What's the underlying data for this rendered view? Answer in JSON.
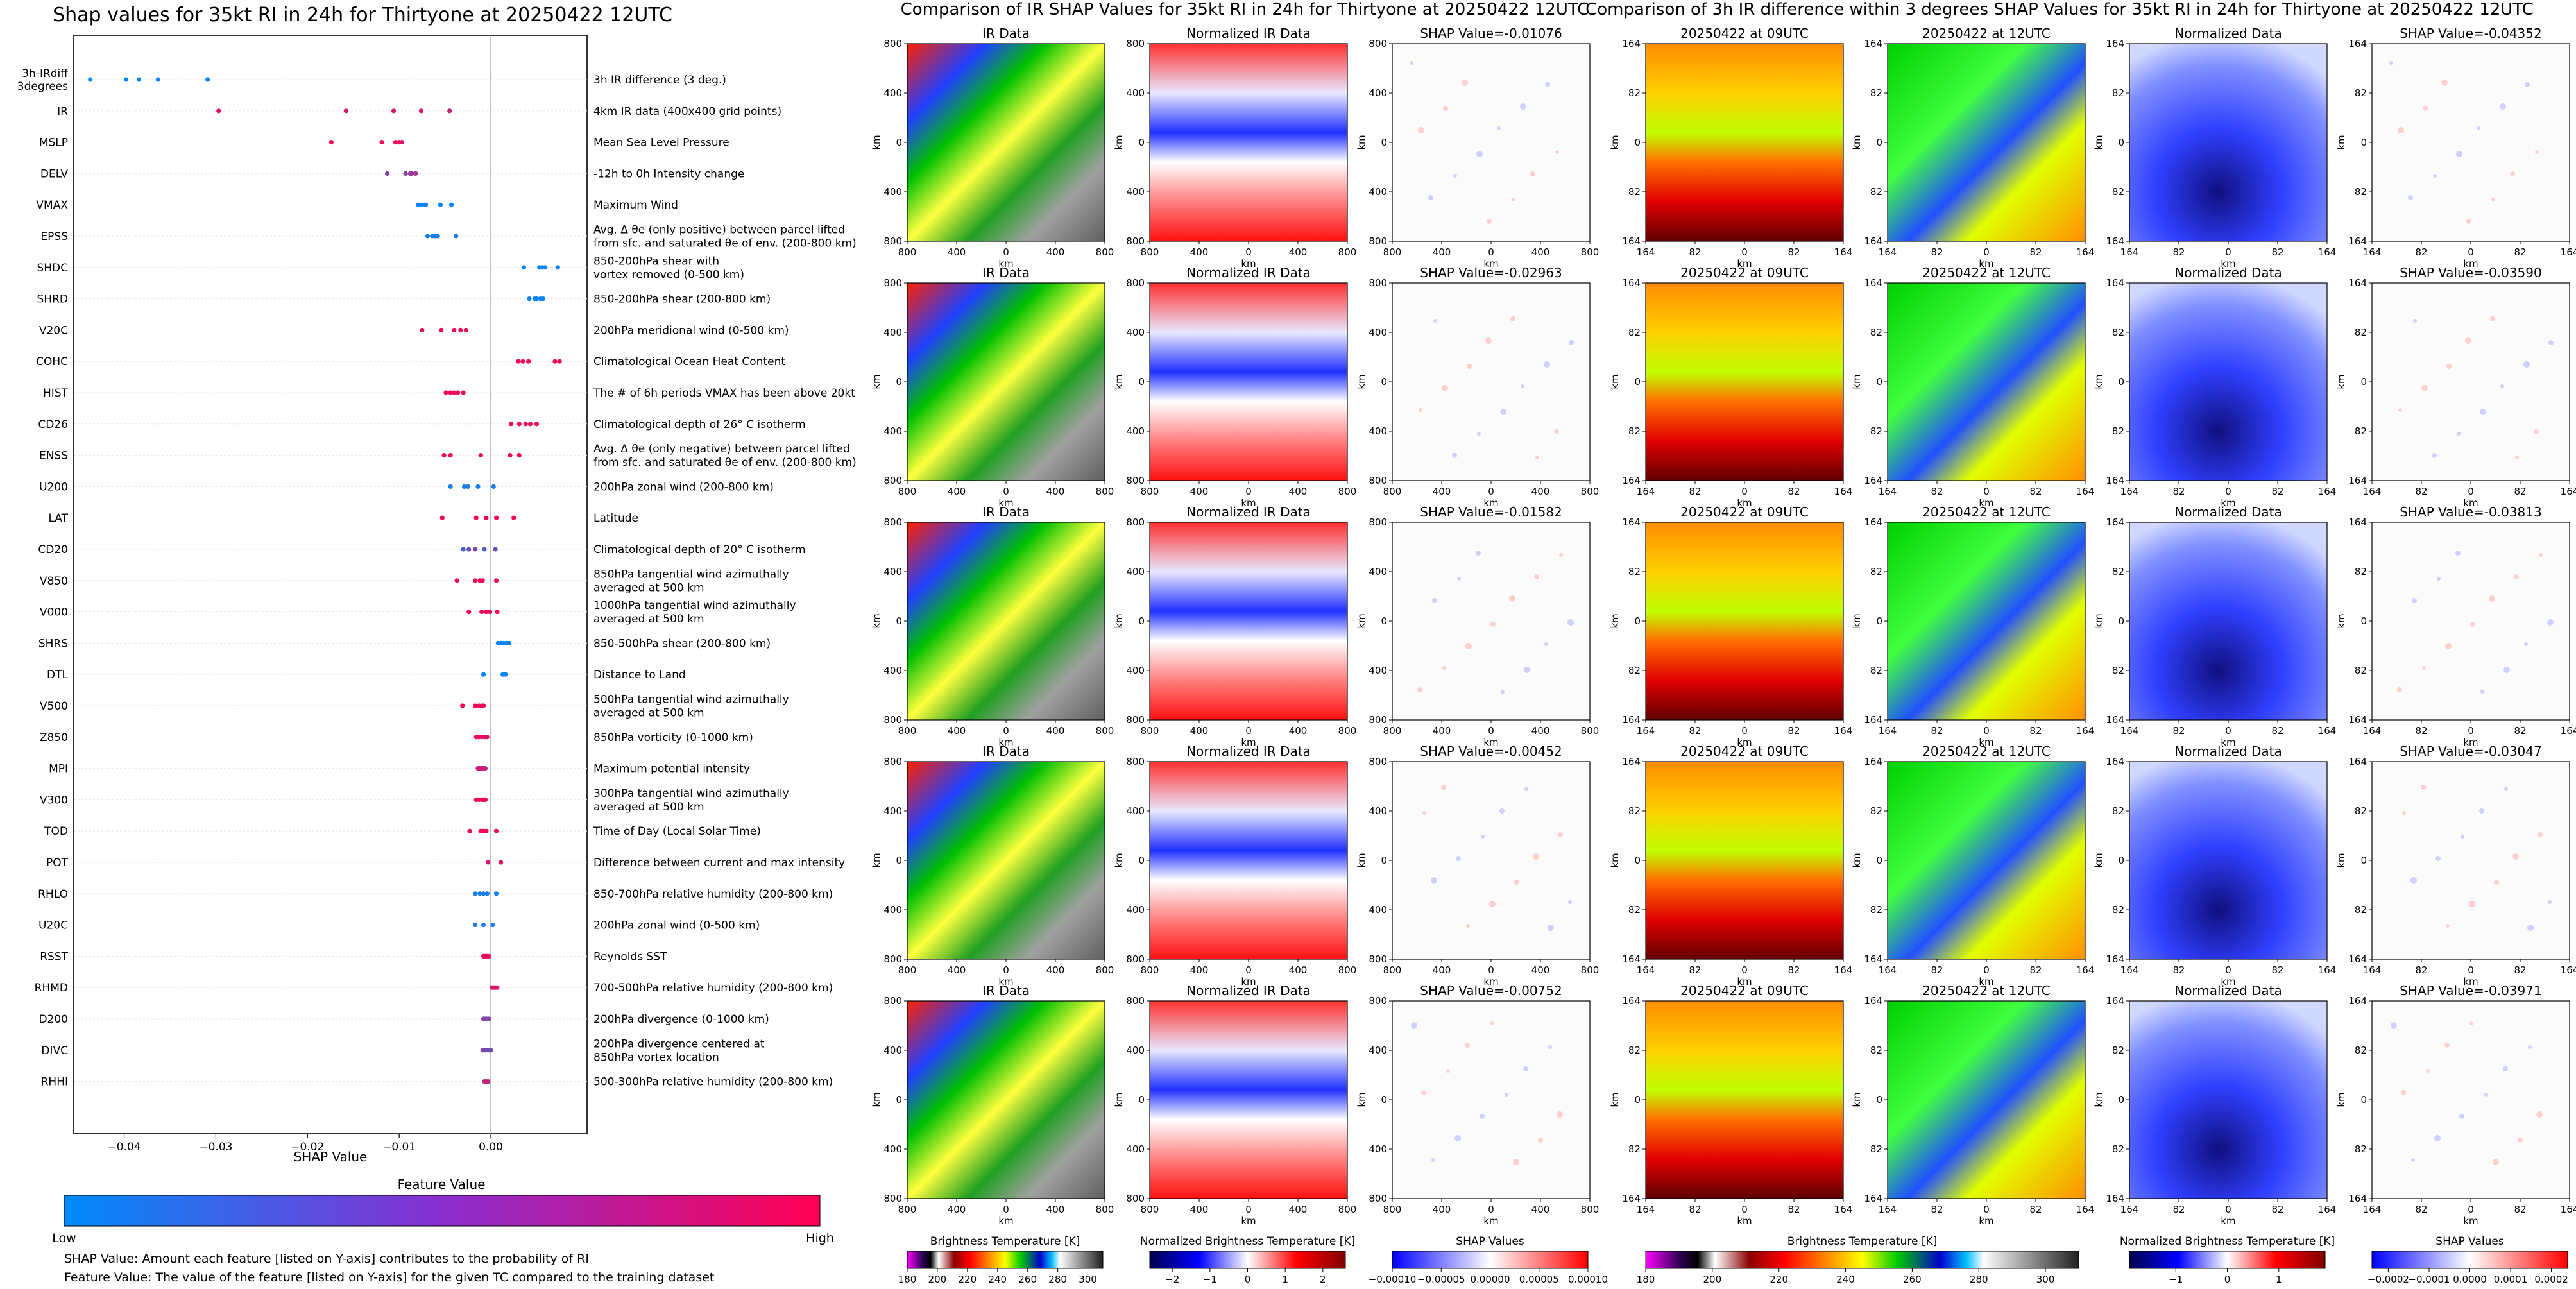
{
  "colors": {
    "low": "#008bfb",
    "high": "#ff0052",
    "panel_border": "#000000",
    "tick_line": "#e6e6e6"
  },
  "chart_data": [
    {
      "type": "scatter",
      "title": "Shap values for 35kt RI in 24h for Thirtyone at 20250422 12UTC",
      "xlabel": "SHAP Value",
      "xlim": [
        -0.0455,
        0.0105
      ],
      "xticks": [
        -0.04,
        -0.03,
        -0.02,
        -0.01,
        0.0
      ],
      "xtick_labels": [
        "−0.04",
        "−0.03",
        "−0.02",
        "−0.01",
        "0.00"
      ],
      "colorbar_title": "Feature Value",
      "colorbar_low": "Low",
      "colorbar_high": "High",
      "footnote_1": "SHAP Value: Amount each feature [listed on Y-axis] contributes to the probability of RI",
      "footnote_2": "Feature Value: The value of the feature [listed on Y-axis] for the given TC compared to the training dataset",
      "features": [
        {
          "code": [
            "3h-IRdiff",
            "3degrees"
          ],
          "desc": [
            "3h IR difference (3 deg.)"
          ],
          "shap": [
            -0.0437,
            -0.0398,
            -0.0384,
            -0.0363,
            -0.0309
          ],
          "val": [
            0.03,
            0.04,
            0.04,
            0.05,
            0.06
          ]
        },
        {
          "code": [
            "IR"
          ],
          "desc": [
            "4km IR data (400x400 grid points)"
          ],
          "shap": [
            -0.0297,
            -0.0158,
            -0.0106,
            -0.0076,
            -0.0045
          ],
          "val": [
            0.9,
            0.85,
            0.8,
            0.85,
            0.75
          ]
        },
        {
          "code": [
            "MSLP"
          ],
          "desc": [
            "Mean Sea Level Pressure"
          ],
          "shap": [
            -0.0174,
            -0.0119,
            -0.0104,
            -0.01,
            -0.0097
          ],
          "val": [
            0.95,
            0.95,
            0.95,
            0.95,
            0.9
          ]
        },
        {
          "code": [
            "DELV"
          ],
          "desc": [
            "-12h to 0h Intensity change"
          ],
          "shap": [
            -0.0113,
            -0.0093,
            -0.0088,
            -0.0086,
            -0.0082
          ],
          "val": [
            0.5,
            0.55,
            0.55,
            0.6,
            0.6
          ]
        },
        {
          "code": [
            "VMAX"
          ],
          "desc": [
            "Maximum Wind"
          ],
          "shap": [
            -0.0079,
            -0.0075,
            -0.0071,
            -0.0055,
            -0.0043
          ],
          "val": [
            0.05,
            0.05,
            0.05,
            0.05,
            0.05
          ]
        },
        {
          "code": [
            "EPSS"
          ],
          "desc": [
            "Avg. Δ θe (only positive) between parcel lifted",
            "from sfc. and saturated θe of env. (200-800 km)"
          ],
          "shap": [
            -0.0069,
            -0.0064,
            -0.0061,
            -0.0058,
            -0.0038
          ],
          "val": [
            0.1,
            0.1,
            0.1,
            0.1,
            0.1
          ]
        },
        {
          "code": [
            "SHDC"
          ],
          "desc": [
            "850-200hPa shear with",
            "vortex removed (0-500 km)"
          ],
          "shap": [
            0.0036,
            0.0053,
            0.0056,
            0.0059,
            0.0073
          ],
          "val": [
            0.05,
            0.05,
            0.05,
            0.05,
            0.05
          ]
        },
        {
          "code": [
            "SHRD"
          ],
          "desc": [
            "850-200hPa shear (200-800 km)"
          ],
          "shap": [
            0.0042,
            0.0048,
            0.005,
            0.0054,
            0.0057
          ],
          "val": [
            0.05,
            0.05,
            0.05,
            0.05,
            0.05
          ]
        },
        {
          "code": [
            "V20C"
          ],
          "desc": [
            "200hPa meridional wind (0-500 km)"
          ],
          "shap": [
            -0.0075,
            -0.0054,
            -0.004,
            -0.0033,
            -0.0027
          ],
          "val": [
            0.95,
            0.95,
            0.95,
            0.95,
            0.95
          ]
        },
        {
          "code": [
            "COHC"
          ],
          "desc": [
            "Climatological Ocean Heat Content"
          ],
          "shap": [
            0.003,
            0.0035,
            0.0041,
            0.007,
            0.0075
          ],
          "val": [
            0.95,
            0.95,
            0.95,
            0.95,
            0.95
          ]
        },
        {
          "code": [
            "HIST"
          ],
          "desc": [
            "The # of 6h periods VMAX has been above 20kt"
          ],
          "shap": [
            -0.0049,
            -0.0044,
            -0.004,
            -0.0036,
            -0.003
          ],
          "val": [
            0.95,
            0.95,
            0.95,
            0.95,
            0.95
          ]
        },
        {
          "code": [
            "CD26"
          ],
          "desc": [
            "Climatological depth of 26° C isotherm"
          ],
          "shap": [
            0.0022,
            0.0031,
            0.0038,
            0.0043,
            0.005
          ],
          "val": [
            0.95,
            0.95,
            0.95,
            0.95,
            0.95
          ]
        },
        {
          "code": [
            "ENSS"
          ],
          "desc": [
            "Avg. Δ θe (only negative) between parcel lifted",
            "from sfc. and saturated θe of env. (200-800 km)"
          ],
          "shap": [
            -0.0051,
            -0.0044,
            -0.0011,
            0.0021,
            0.0031
          ],
          "val": [
            0.95,
            0.95,
            0.95,
            0.95,
            0.95
          ]
        },
        {
          "code": [
            "U200"
          ],
          "desc": [
            "200hPa zonal wind (200-800 km)"
          ],
          "shap": [
            -0.0044,
            -0.0029,
            -0.0025,
            -0.0014,
            0.0003
          ],
          "val": [
            0.1,
            0.1,
            0.1,
            0.1,
            0.1
          ]
        },
        {
          "code": [
            "LAT"
          ],
          "desc": [
            "Latitude"
          ],
          "shap": [
            -0.0053,
            -0.0016,
            -0.0005,
            0.0006,
            0.0025
          ],
          "val": [
            0.95,
            0.95,
            0.95,
            0.95,
            0.95
          ]
        },
        {
          "code": [
            "CD20"
          ],
          "desc": [
            "Climatological depth of 20° C isotherm"
          ],
          "shap": [
            -0.003,
            -0.0024,
            -0.0017,
            -0.0007,
            0.0005
          ],
          "val": [
            0.3,
            0.4,
            0.5,
            0.3,
            0.4
          ]
        },
        {
          "code": [
            "V850"
          ],
          "desc": [
            "850hPa tangential wind azimuthally",
            "averaged at 500 km"
          ],
          "shap": [
            -0.0037,
            -0.0017,
            -0.0012,
            -0.0009,
            0.0006
          ],
          "val": [
            0.95,
            0.95,
            0.95,
            0.95,
            0.95
          ]
        },
        {
          "code": [
            "V000"
          ],
          "desc": [
            "1000hPa tangential wind azimuthally",
            "averaged at 500 km"
          ],
          "shap": [
            -0.0024,
            -0.001,
            -0.0005,
            -0.0001,
            0.0007
          ],
          "val": [
            0.95,
            0.95,
            0.95,
            0.95,
            0.95
          ]
        },
        {
          "code": [
            "SHRS"
          ],
          "desc": [
            "850-500hPa shear (200-800 km)"
          ],
          "shap": [
            0.0008,
            0.0011,
            0.0014,
            0.0017,
            0.002
          ],
          "val": [
            0.05,
            0.05,
            0.05,
            0.05,
            0.05
          ]
        },
        {
          "code": [
            "DTL"
          ],
          "desc": [
            "Distance to Land"
          ],
          "shap": [
            -0.0008,
            0.0013,
            0.0016
          ],
          "val": [
            0.05,
            0.05,
            0.05
          ]
        },
        {
          "code": [
            "V500"
          ],
          "desc": [
            "500hPa tangential wind azimuthally",
            "averaged at 500 km"
          ],
          "shap": [
            -0.0031,
            -0.0017,
            -0.0013,
            -0.001,
            -0.0008
          ],
          "val": [
            0.95,
            0.95,
            0.95,
            0.95,
            0.95
          ]
        },
        {
          "code": [
            "Z850"
          ],
          "desc": [
            "850hPa vorticity (0-1000 km)"
          ],
          "shap": [
            -0.0016,
            -0.0013,
            -0.001,
            -0.0007,
            -0.0004
          ],
          "val": [
            0.95,
            0.9,
            0.9,
            0.85,
            0.85
          ]
        },
        {
          "code": [
            "MPI"
          ],
          "desc": [
            "Maximum potential intensity"
          ],
          "shap": [
            -0.0014,
            -0.0012,
            -0.001,
            -0.0008,
            -0.0006
          ],
          "val": [
            0.8,
            0.75,
            0.75,
            0.8,
            0.75
          ]
        },
        {
          "code": [
            "V300"
          ],
          "desc": [
            "300hPa tangential wind azimuthally",
            "averaged at 500 km"
          ],
          "shap": [
            -0.0016,
            -0.0013,
            -0.001,
            -0.0008,
            -0.0006
          ],
          "val": [
            0.95,
            0.95,
            0.95,
            0.95,
            0.95
          ]
        },
        {
          "code": [
            "TOD"
          ],
          "desc": [
            "Time of Day (Local Solar Time)"
          ],
          "shap": [
            -0.0023,
            -0.0011,
            -0.0008,
            -0.0005,
            0.0006
          ],
          "val": [
            0.95,
            0.95,
            0.95,
            0.95,
            0.95
          ]
        },
        {
          "code": [
            "POT"
          ],
          "desc": [
            "Difference between current and max intensity"
          ],
          "shap": [
            -0.0003,
            0.0011
          ],
          "val": [
            0.85,
            0.85
          ]
        },
        {
          "code": [
            "RHLO"
          ],
          "desc": [
            "850-700hPa relative humidity (200-800 km)"
          ],
          "shap": [
            -0.0017,
            -0.0012,
            -0.0008,
            -0.0004,
            0.0006
          ],
          "val": [
            0.1,
            0.1,
            0.1,
            0.1,
            0.1
          ]
        },
        {
          "code": [
            "U20C"
          ],
          "desc": [
            "200hPa zonal wind (0-500 km)"
          ],
          "shap": [
            -0.0017,
            -0.0008,
            0.0002
          ],
          "val": [
            0.1,
            0.1,
            0.1
          ]
        },
        {
          "code": [
            "RSST"
          ],
          "desc": [
            "Reynolds SST"
          ],
          "shap": [
            -0.0008,
            -0.0006,
            -0.0004,
            -0.0002
          ],
          "val": [
            0.95,
            0.95,
            0.95,
            0.95
          ]
        },
        {
          "code": [
            "RHMD"
          ],
          "desc": [
            "700-500hPa relative humidity (200-800 km)"
          ],
          "shap": [
            0.0001,
            0.0003,
            0.0005,
            0.0007
          ],
          "val": [
            0.85,
            0.85,
            0.85,
            0.85
          ]
        },
        {
          "code": [
            "D200"
          ],
          "desc": [
            "200hPa divergence (0-1000 km)"
          ],
          "shap": [
            -0.0008,
            -0.0006,
            -0.0004,
            -0.0002
          ],
          "val": [
            0.5,
            0.5,
            0.5,
            0.5
          ]
        },
        {
          "code": [
            "DIVC"
          ],
          "desc": [
            "200hPa divergence centered at",
            "850hPa vortex location"
          ],
          "shap": [
            -0.0009,
            -0.0006,
            -0.0003,
            0.0
          ],
          "val": [
            0.45,
            0.45,
            0.45,
            0.45
          ]
        },
        {
          "code": [
            "RHHI"
          ],
          "desc": [
            "500-300hPa relative humidity (200-800 km)"
          ],
          "shap": [
            -0.0007,
            -0.0005,
            -0.0003
          ],
          "val": [
            0.75,
            0.75,
            0.75
          ]
        }
      ]
    },
    {
      "type": "heatmap",
      "title": "Comparison of IR SHAP Values for 35kt RI in 24h for Thirtyone at 20250422 12UTC",
      "column_titles": [
        "IR Data",
        "Normalized IR Data"
      ],
      "shap_values": [
        "SHAP Value=-0.01076",
        "SHAP Value=-0.02963",
        "SHAP Value=-0.01582",
        "SHAP Value=-0.00452",
        "SHAP Value=-0.00752"
      ],
      "axis_label": "km",
      "tick_labels": [
        "800",
        "400",
        "0",
        "400",
        "800"
      ],
      "colorbars": [
        {
          "label": "Brightness Temperature [K]",
          "ticks": [
            "180",
            "200",
            "220",
            "240",
            "260",
            "280",
            "300"
          ],
          "range": [
            180,
            310
          ]
        },
        {
          "label": "Normalized Brightness Temperature [K]",
          "ticks": [
            "−2",
            "−1",
            "0",
            "1",
            "2"
          ],
          "range": [
            -2.6,
            2.6
          ]
        },
        {
          "label": "SHAP Values",
          "ticks": [
            "−0.00010",
            "−0.00005",
            "0.00000",
            "0.00005",
            "0.00010"
          ],
          "range": [
            -0.0001,
            0.0001
          ]
        }
      ]
    },
    {
      "type": "heatmap",
      "title": "Comparison of 3h IR difference within 3 degrees SHAP Values for 35kt RI in 24h for Thirtyone at 20250422 12UTC",
      "column_titles": [
        "20250422 at 09UTC",
        "20250422 at 12UTC",
        "Normalized Data"
      ],
      "shap_values": [
        "SHAP Value=-0.04352",
        "SHAP Value=-0.03590",
        "SHAP Value=-0.03813",
        "SHAP Value=-0.03047",
        "SHAP Value=-0.03971"
      ],
      "axis_label": "km",
      "tick_labels": [
        "164",
        "82",
        "0",
        "82",
        "164"
      ],
      "colorbars": [
        {
          "label": "Brightness Temperature [K]",
          "ticks": [
            "180",
            "200",
            "220",
            "240",
            "260",
            "280",
            "300"
          ],
          "range": [
            180,
            310
          ]
        },
        {
          "label": "Normalized Brightness Temperature [K]",
          "ticks": [
            "−1",
            "0",
            "1"
          ],
          "range": [
            -1.9,
            1.9
          ]
        },
        {
          "label": "SHAP Values",
          "ticks": [
            "−0.0002",
            "−0.0001",
            "0.0000",
            "0.0001",
            "0.0002"
          ],
          "range": [
            -0.00024,
            0.00024
          ]
        }
      ]
    }
  ]
}
